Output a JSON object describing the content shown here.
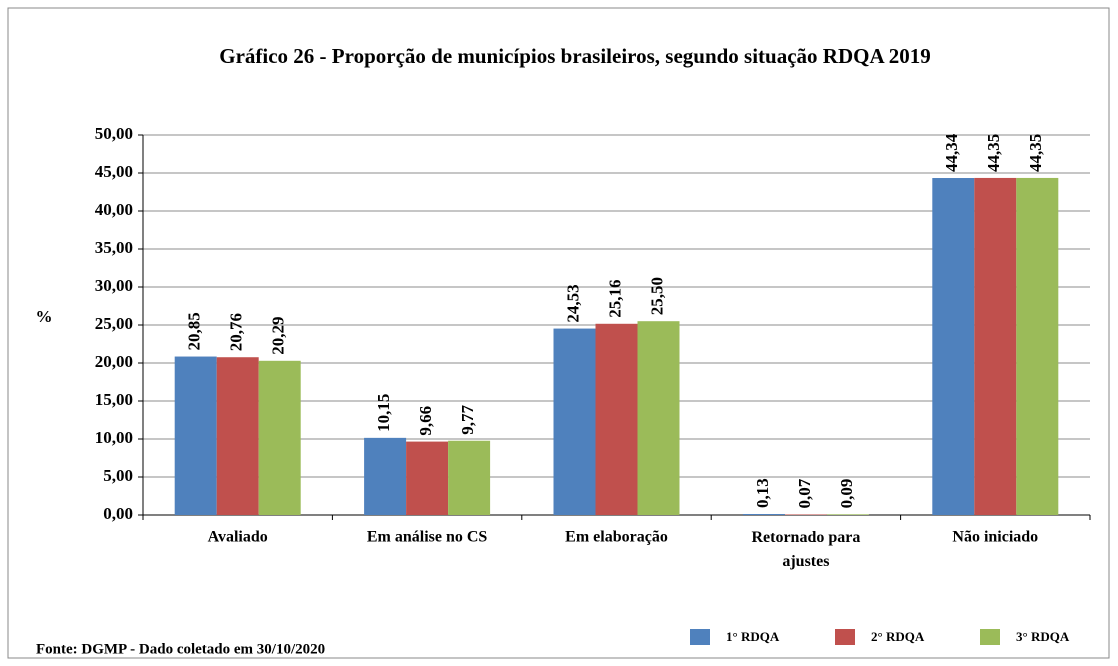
{
  "chart_data": {
    "type": "bar",
    "title": "Gráfico 26 - Proporção  de municípios brasileiros,   segundo situação RDQA 2019",
    "y_label": "%",
    "source": "Fonte: DGMP - Dado coletado em 30/10/2020",
    "categories": [
      "Avaliado",
      "Em análise no CS",
      "Em elaboração",
      "Retornado para ajustes",
      "Não iniciado"
    ],
    "series": [
      {
        "name": "1° RDQA",
        "color": "#4f81bd",
        "values": [
          20.85,
          10.15,
          24.53,
          0.13,
          44.34
        ],
        "value_labels": [
          "20,85",
          "10,15",
          "24,53",
          "0,13",
          "44,34"
        ]
      },
      {
        "name": "2° RDQA",
        "color": "#c0504d",
        "values": [
          20.76,
          9.66,
          25.16,
          0.07,
          44.35
        ],
        "value_labels": [
          "20,76",
          "9,66",
          "25,16",
          "0,07",
          "44,35"
        ]
      },
      {
        "name": "3° RDQA",
        "color": "#9bbb59",
        "values": [
          20.29,
          9.77,
          25.5,
          0.09,
          44.35
        ],
        "value_labels": [
          "20,29",
          "9,77",
          "25,50",
          "0,09",
          "44,35"
        ]
      }
    ],
    "ylim": [
      0,
      50
    ],
    "yticks": [
      {
        "value": 0,
        "label": "0,00"
      },
      {
        "value": 5,
        "label": "5,00"
      },
      {
        "value": 10,
        "label": "10,00"
      },
      {
        "value": 15,
        "label": "15,00"
      },
      {
        "value": 20,
        "label": "20,00"
      },
      {
        "value": 25,
        "label": "25,00"
      },
      {
        "value": 30,
        "label": "30,00"
      },
      {
        "value": 35,
        "label": "35,00"
      },
      {
        "value": 40,
        "label": "40,00"
      },
      {
        "value": 45,
        "label": "45,00"
      },
      {
        "value": 50,
        "label": "50,00"
      }
    ],
    "grid": true
  }
}
